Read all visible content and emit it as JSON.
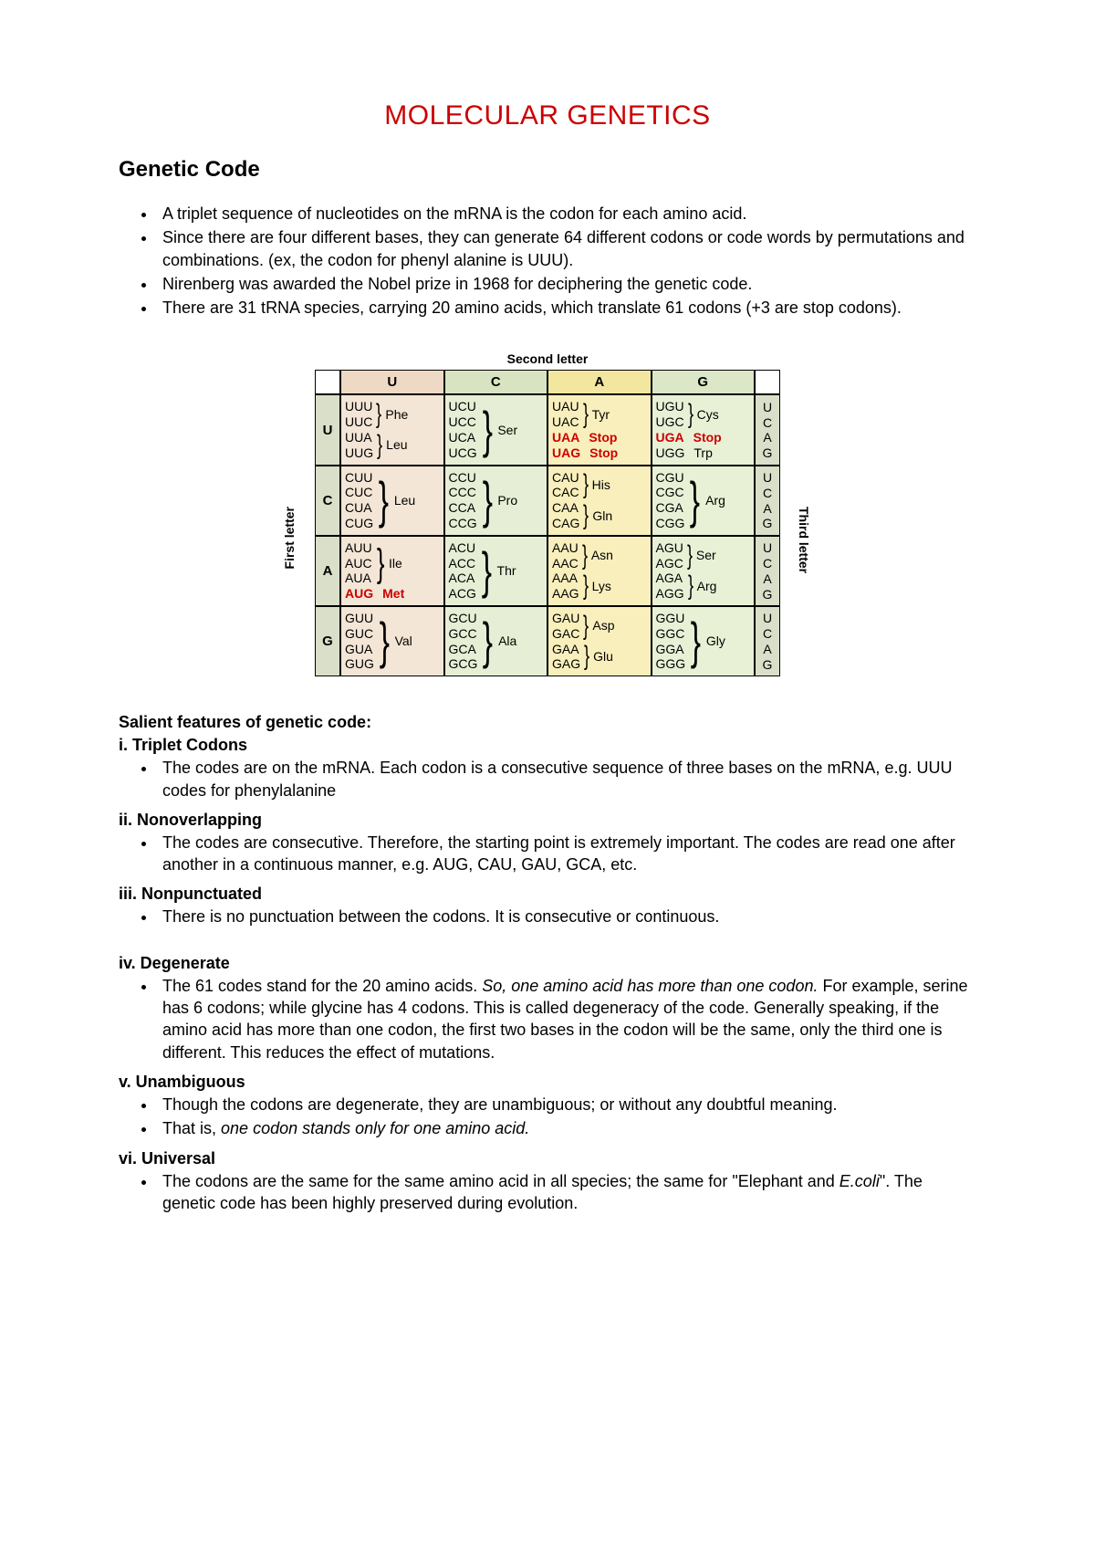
{
  "colors": {
    "title_color": "#cc0000",
    "text_color": "#000000",
    "special_codon_color": "#cc0000",
    "header_bg_side": "#d9dfc8",
    "col_bg": {
      "U": "#f3e6d6",
      "C": "#e6efd5",
      "A": "#f8efbc",
      "G": "#e8f1d6"
    },
    "col_header_bg": {
      "U": "#eed9c4",
      "C": "#d8e4c1",
      "A": "#f3e7a0",
      "G": "#dbe7c6"
    }
  },
  "title": "MOLECULAR GENETICS",
  "subtitle": "Genetic Code",
  "top_bullets": [
    "A triplet sequence of nucleotides on the mRNA is the codon for each amino acid.",
    "Since there are four different bases, they can generate 64 different codons or code words by permutations and combinations. (ex, the codon for phenyl alanine is UUU).",
    "Nirenberg was awarded the Nobel prize in 1968 for deciphering the genetic code.",
    "There are 31 tRNA species, carrying 20 amino acids, which translate 61 codons (+3 are stop codons)."
  ],
  "codon_table": {
    "label_second": "Second letter",
    "label_first": "First letter",
    "label_third": "Third letter",
    "columns": [
      "U",
      "C",
      "A",
      "G"
    ],
    "rows": [
      "U",
      "C",
      "A",
      "G"
    ],
    "third_letters": [
      "U",
      "C",
      "A",
      "G"
    ],
    "cells": {
      "U": {
        "U": [
          {
            "codons": [
              "UUU",
              "UUC"
            ],
            "aa": "Phe"
          },
          {
            "codons": [
              "UUA",
              "UUG"
            ],
            "aa": "Leu"
          }
        ],
        "C": [
          {
            "codons": [
              "UCU",
              "UCC",
              "UCA",
              "UCG"
            ],
            "aa": "Ser"
          }
        ],
        "A": [
          {
            "codons": [
              "UAU",
              "UAC"
            ],
            "aa": "Tyr"
          },
          {
            "codon": "UAA",
            "aa": "Stop",
            "special": true
          },
          {
            "codon": "UAG",
            "aa": "Stop",
            "special": true
          }
        ],
        "G": [
          {
            "codons": [
              "UGU",
              "UGC"
            ],
            "aa": "Cys"
          },
          {
            "codon": "UGA",
            "aa": "Stop",
            "special": true
          },
          {
            "codon": "UGG",
            "aa": "Trp"
          }
        ]
      },
      "C": {
        "U": [
          {
            "codons": [
              "CUU",
              "CUC",
              "CUA",
              "CUG"
            ],
            "aa": "Leu"
          }
        ],
        "C": [
          {
            "codons": [
              "CCU",
              "CCC",
              "CCA",
              "CCG"
            ],
            "aa": "Pro"
          }
        ],
        "A": [
          {
            "codons": [
              "CAU",
              "CAC"
            ],
            "aa": "His"
          },
          {
            "codons": [
              "CAA",
              "CAG"
            ],
            "aa": "Gln"
          }
        ],
        "G": [
          {
            "codons": [
              "CGU",
              "CGC",
              "CGA",
              "CGG"
            ],
            "aa": "Arg"
          }
        ]
      },
      "A": {
        "U": [
          {
            "codons": [
              "AUU",
              "AUC",
              "AUA"
            ],
            "aa": "Ile"
          },
          {
            "codon": "AUG",
            "aa": "Met",
            "special": true
          }
        ],
        "C": [
          {
            "codons": [
              "ACU",
              "ACC",
              "ACA",
              "ACG"
            ],
            "aa": "Thr"
          }
        ],
        "A": [
          {
            "codons": [
              "AAU",
              "AAC"
            ],
            "aa": "Asn"
          },
          {
            "codons": [
              "AAA",
              "AAG"
            ],
            "aa": "Lys"
          }
        ],
        "G": [
          {
            "codons": [
              "AGU",
              "AGC"
            ],
            "aa": "Ser"
          },
          {
            "codons": [
              "AGA",
              "AGG"
            ],
            "aa": "Arg"
          }
        ]
      },
      "G": {
        "U": [
          {
            "codons": [
              "GUU",
              "GUC",
              "GUA",
              "GUG"
            ],
            "aa": "Val"
          }
        ],
        "C": [
          {
            "codons": [
              "GCU",
              "GCC",
              "GCA",
              "GCG"
            ],
            "aa": "Ala"
          }
        ],
        "A": [
          {
            "codons": [
              "GAU",
              "GAC"
            ],
            "aa": "Asp"
          },
          {
            "codons": [
              "GAA",
              "GAG"
            ],
            "aa": "Glu"
          }
        ],
        "G": [
          {
            "codons": [
              "GGU",
              "GGC",
              "GGA",
              "GGG"
            ],
            "aa": "Gly"
          }
        ]
      }
    }
  },
  "features_title": "Salient features of genetic code",
  "features": [
    {
      "head": "i. Triplet Codons",
      "items": [
        {
          "text": "The codes are on the mRNA. Each codon is a consecutive sequence of three bases on the mRNA, e.g. UUU codes for phenylalanine"
        }
      ]
    },
    {
      "head": "ii. Nonoverlapping",
      "items": [
        {
          "text": "The codes are consecutive. Therefore, the starting point is extremely important. The codes are read one after another in a continuous manner, e.g. AUG, CAU, GAU, GCA, etc."
        }
      ]
    },
    {
      "head": "iii. Nonpunctuated",
      "items": [
        {
          "text": "There is no punctuation between the codons. It is consecutive or continuous."
        }
      ],
      "spacer_after": true
    },
    {
      "head": "iv. Degenerate",
      "items": [
        {
          "html": "The 61 codes stand for the 20 amino acids. <span class=\"italic\">So, one amino acid has more than one codon.</span> For example, serine has 6 codons; while glycine has 4 codons. This is called degeneracy of the code. Generally speaking, if the amino acid has more than one codon, the first two bases in the codon will be the same, only the third one is different. This reduces the effect of mutations."
        }
      ]
    },
    {
      "head": "v. Unambiguous",
      "items": [
        {
          "text": "Though the codons are degenerate, they are unambiguous; or without any doubtful meaning."
        },
        {
          "html": "That is, <span class=\"italic\">one codon stands only for one amino acid.</span>"
        }
      ]
    },
    {
      "head": "vi. Universal",
      "items": [
        {
          "html": "The codons are the same for the same amino acid in all species; the same for \"Elephant and <span class=\"italic\">E.coli</span>\". The genetic code has been highly preserved during evolution."
        }
      ]
    }
  ]
}
